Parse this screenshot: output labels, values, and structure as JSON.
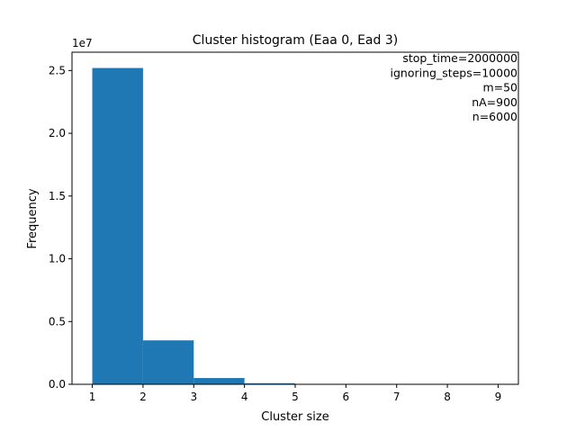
{
  "chart_data": {
    "type": "bar",
    "title": "Cluster histogram (Eaa 0, Ead 3)",
    "xlabel": "Cluster size",
    "ylabel": "Frequency",
    "y_scale_label": "1e7",
    "bins": [
      {
        "x0": 1,
        "x1": 2,
        "value": 25200000
      },
      {
        "x0": 2,
        "x1": 3,
        "value": 3500000
      },
      {
        "x0": 3,
        "x1": 4,
        "value": 500000
      },
      {
        "x0": 4,
        "x1": 5,
        "value": 80000
      },
      {
        "x0": 5,
        "x1": 6,
        "value": 10000
      },
      {
        "x0": 6,
        "x1": 7,
        "value": 1000
      },
      {
        "x0": 7,
        "x1": 8,
        "value": 100
      },
      {
        "x0": 8,
        "x1": 9,
        "value": 10
      }
    ],
    "xlim": [
      0.6,
      9.4
    ],
    "ylim": [
      0,
      26460000
    ],
    "xticks": [
      1,
      2,
      3,
      4,
      5,
      6,
      7,
      8,
      9
    ],
    "xtick_labels": [
      "1",
      "2",
      "3",
      "4",
      "5",
      "6",
      "7",
      "8",
      "9"
    ],
    "yticks": [
      0,
      5000000,
      10000000,
      15000000,
      20000000,
      25000000
    ],
    "ytick_labels": [
      "0.0",
      "0.5",
      "1.0",
      "1.5",
      "2.0",
      "2.5"
    ],
    "annotations": [
      "stop_time=2000000",
      "ignoring_steps=10000",
      "m=50",
      "nA=900",
      "n=6000"
    ],
    "bar_color": "#1f77b4",
    "grid": false,
    "legend": false
  }
}
